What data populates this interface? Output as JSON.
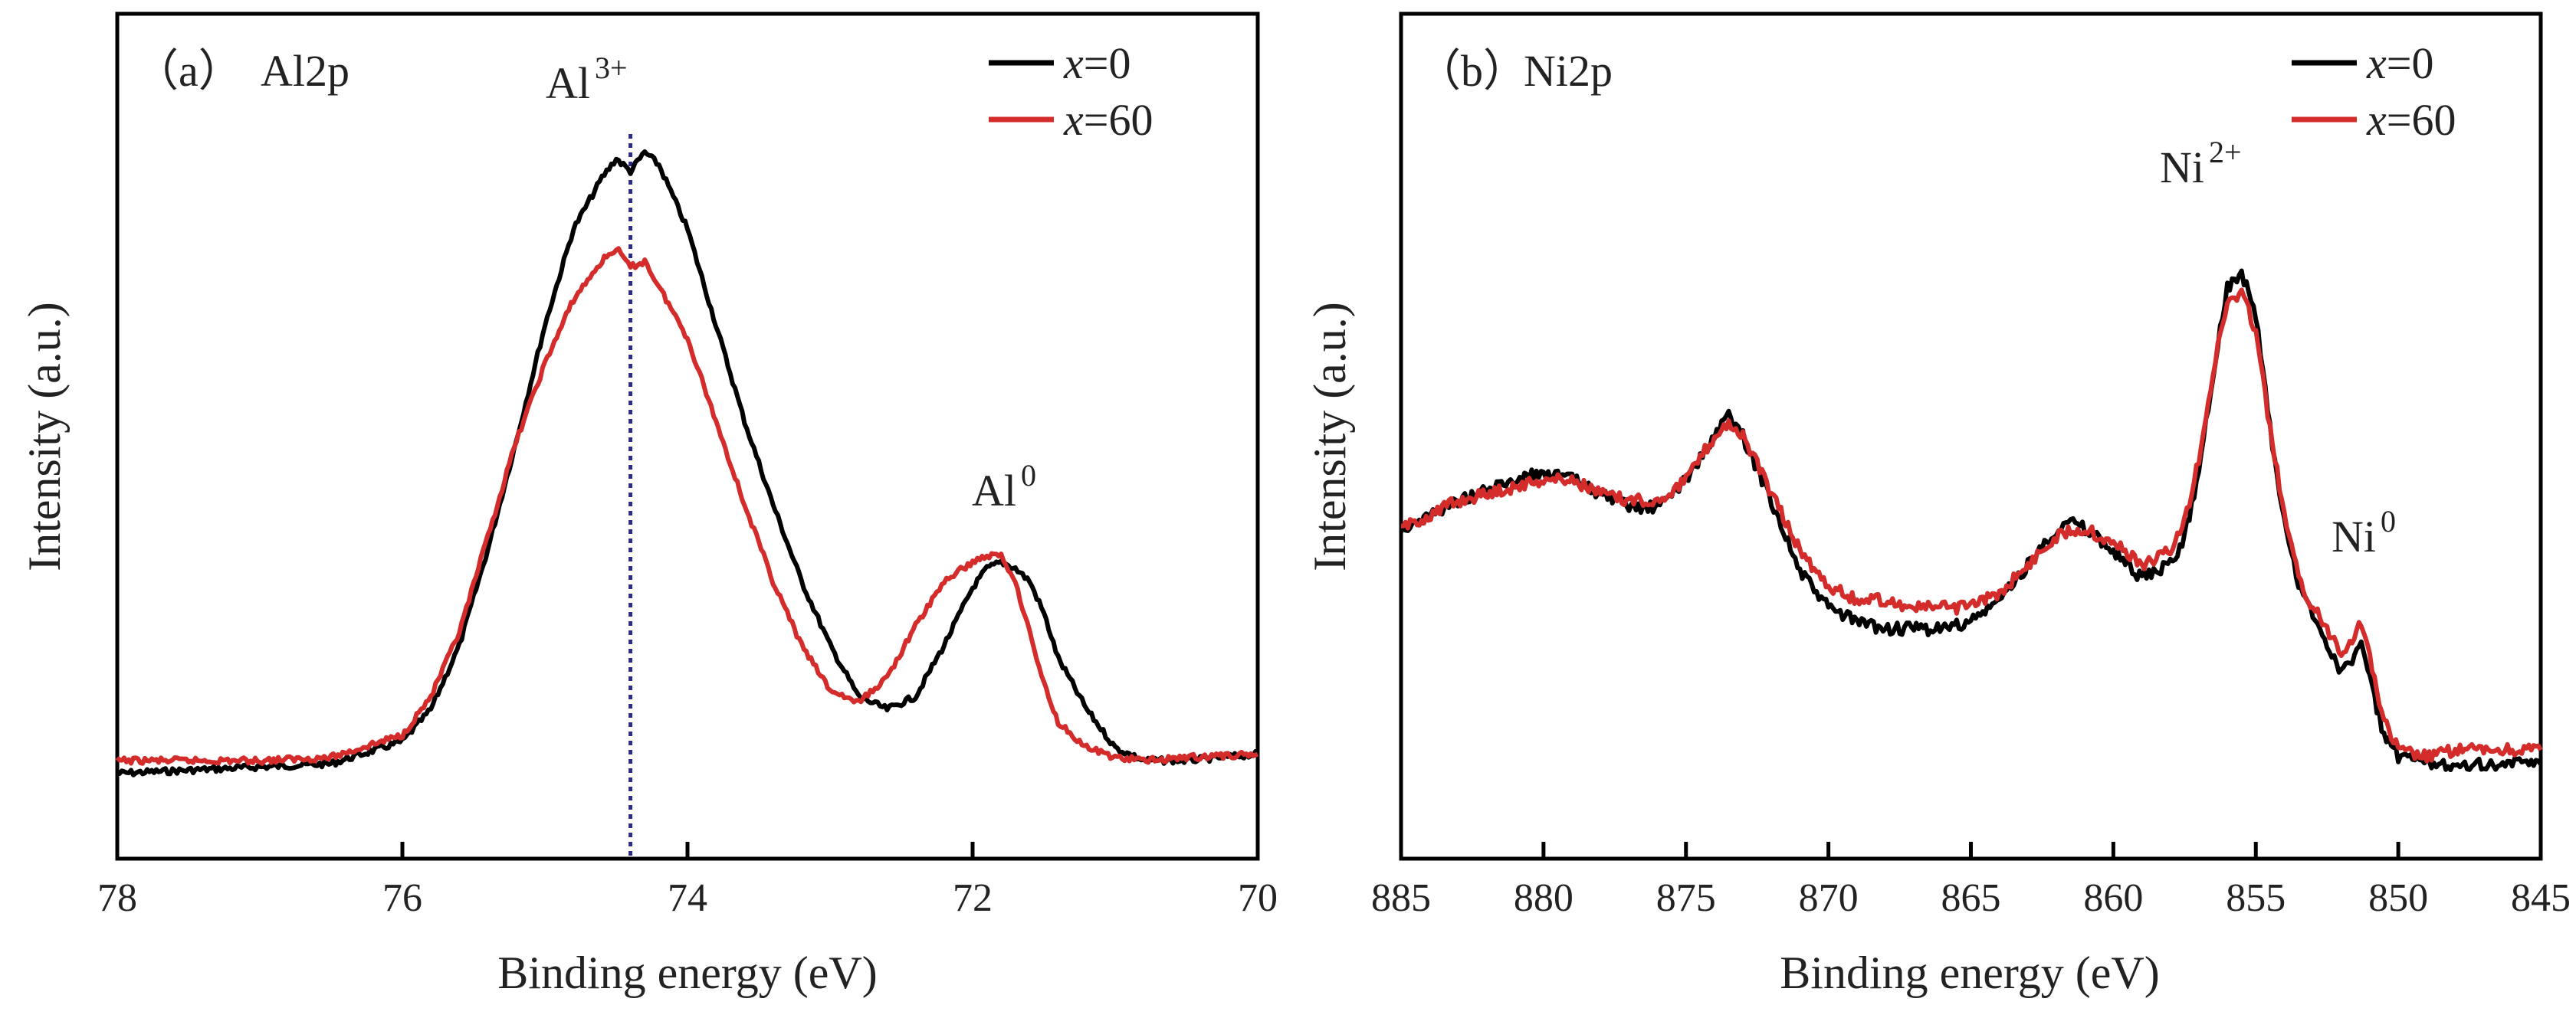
{
  "chart_data": [
    {
      "type": "line",
      "panel_label": "（a）",
      "title": "Al2p",
      "xlabel": "Binding energy (eV)",
      "ylabel": "Intensity (a.u.)",
      "xlim": [
        78,
        70
      ],
      "ylim": [
        -0.12,
        1.1
      ],
      "x_reversed": true,
      "xticks": [
        78,
        76,
        74,
        72,
        70
      ],
      "xtick_labels": [
        "78",
        "76",
        "74",
        "72",
        "70"
      ],
      "yticks": "none",
      "grid": false,
      "legend": {
        "position": "top-right",
        "prefix": "x",
        "entries": [
          "=0",
          "=60"
        ]
      },
      "annotations": [
        {
          "base": "Al",
          "sup": "3+",
          "x": 74.4,
          "y": 1.03
        },
        {
          "base": "Al",
          "sup": "0",
          "x": 71.7,
          "y": 0.44
        }
      ],
      "reference_line": {
        "x": 74.4,
        "style": "dotted",
        "color": "#2b2b8c"
      },
      "series": [
        {
          "name": "x=0",
          "color": "#000000",
          "x": [
            78.0,
            77.5,
            77.0,
            76.5,
            76.0,
            75.8,
            75.6,
            75.4,
            75.2,
            75.0,
            74.8,
            74.6,
            74.5,
            74.4,
            74.3,
            74.2,
            74.1,
            74.0,
            73.8,
            73.6,
            73.4,
            73.2,
            73.0,
            72.8,
            72.6,
            72.4,
            72.2,
            72.0,
            71.9,
            71.8,
            71.7,
            71.6,
            71.5,
            71.4,
            71.2,
            71.0,
            70.8,
            70.5,
            70.0
          ],
          "y": [
            0.0,
            0.005,
            0.01,
            0.015,
            0.05,
            0.1,
            0.2,
            0.35,
            0.52,
            0.7,
            0.85,
            0.93,
            0.96,
            0.94,
            0.97,
            0.95,
            0.9,
            0.85,
            0.7,
            0.55,
            0.42,
            0.3,
            0.2,
            0.12,
            0.1,
            0.12,
            0.2,
            0.29,
            0.32,
            0.33,
            0.32,
            0.3,
            0.25,
            0.18,
            0.1,
            0.04,
            0.02,
            0.02,
            0.03
          ]
        },
        {
          "name": "x=60",
          "color": "#d42b2b",
          "x": [
            78.0,
            77.5,
            77.0,
            76.5,
            76.0,
            75.8,
            75.6,
            75.4,
            75.2,
            75.0,
            74.8,
            74.6,
            74.5,
            74.4,
            74.3,
            74.2,
            74.0,
            73.8,
            73.6,
            73.4,
            73.2,
            73.0,
            72.8,
            72.6,
            72.4,
            72.2,
            72.0,
            71.9,
            71.8,
            71.7,
            71.6,
            71.5,
            71.4,
            71.2,
            71.0,
            70.8,
            70.5,
            70.0
          ],
          "y": [
            0.02,
            0.02,
            0.02,
            0.025,
            0.06,
            0.12,
            0.22,
            0.37,
            0.52,
            0.64,
            0.74,
            0.8,
            0.82,
            0.79,
            0.8,
            0.76,
            0.68,
            0.55,
            0.42,
            0.3,
            0.2,
            0.13,
            0.11,
            0.15,
            0.23,
            0.3,
            0.33,
            0.34,
            0.34,
            0.3,
            0.22,
            0.14,
            0.08,
            0.04,
            0.025,
            0.02,
            0.025,
            0.03
          ]
        }
      ]
    },
    {
      "type": "line",
      "panel_label": "（b）",
      "title": "Ni2p",
      "xlabel": "Binding energy (eV)",
      "ylabel": "Intensity (a.u.)",
      "xlim": [
        885,
        845
      ],
      "ylim": [
        0.0,
        1.0
      ],
      "x_reversed": true,
      "xticks": [
        885,
        880,
        875,
        870,
        865,
        860,
        855,
        850,
        845
      ],
      "xtick_labels": [
        "885",
        "880",
        "875",
        "870",
        "865",
        "860",
        "855",
        "850",
        "845"
      ],
      "yticks": "none",
      "grid": false,
      "legend": {
        "position": "top-right",
        "prefix": "x",
        "entries": [
          "=0",
          "=60"
        ]
      },
      "annotations": [
        {
          "base": "Ni",
          "sup": "2+",
          "x": 855.4,
          "y": 0.83
        },
        {
          "base": "Ni",
          "sup": "0",
          "x": 850.7,
          "y": 0.45
        }
      ],
      "series": [
        {
          "name": "x=0",
          "color": "#000000",
          "x": [
            885,
            883,
            881,
            880,
            879,
            878,
            877,
            876,
            875,
            874,
            873.5,
            873,
            872,
            871,
            870,
            869,
            868,
            867,
            866,
            865,
            864,
            863,
            862,
            861.5,
            861,
            860,
            859,
            858,
            857.5,
            857,
            856.5,
            856,
            855.5,
            855,
            854.5,
            854,
            853.5,
            853,
            852.5,
            852,
            851.7,
            851.3,
            851,
            850.5,
            850,
            849,
            848,
            847,
            846,
            845
          ],
          "y": [
            0.44,
            0.48,
            0.51,
            0.52,
            0.51,
            0.49,
            0.47,
            0.47,
            0.51,
            0.57,
            0.6,
            0.57,
            0.48,
            0.38,
            0.33,
            0.31,
            0.3,
            0.3,
            0.3,
            0.31,
            0.34,
            0.39,
            0.44,
            0.45,
            0.44,
            0.41,
            0.37,
            0.39,
            0.43,
            0.52,
            0.66,
            0.78,
            0.8,
            0.74,
            0.58,
            0.45,
            0.36,
            0.32,
            0.28,
            0.24,
            0.25,
            0.28,
            0.23,
            0.15,
            0.12,
            0.11,
            0.11,
            0.11,
            0.11,
            0.11
          ]
        },
        {
          "name": "x=60",
          "color": "#d42b2b",
          "x": [
            885,
            883,
            881,
            880,
            879,
            878,
            877,
            876,
            875,
            874,
            873.5,
            873,
            872,
            871,
            870,
            869,
            868,
            867,
            866,
            865,
            864,
            863,
            862,
            861.5,
            861,
            860,
            859,
            858,
            857.5,
            857,
            856.5,
            856,
            855.5,
            855,
            854.5,
            854,
            853.5,
            853,
            852.5,
            852,
            851.7,
            851.3,
            851,
            850.5,
            850,
            849,
            848,
            847,
            846,
            845
          ],
          "y": [
            0.44,
            0.48,
            0.5,
            0.51,
            0.51,
            0.49,
            0.48,
            0.48,
            0.51,
            0.57,
            0.59,
            0.57,
            0.49,
            0.41,
            0.36,
            0.34,
            0.34,
            0.33,
            0.33,
            0.33,
            0.35,
            0.39,
            0.43,
            0.44,
            0.44,
            0.42,
            0.39,
            0.41,
            0.45,
            0.54,
            0.66,
            0.76,
            0.77,
            0.72,
            0.58,
            0.46,
            0.37,
            0.33,
            0.3,
            0.27,
            0.28,
            0.31,
            0.26,
            0.17,
            0.13,
            0.12,
            0.13,
            0.13,
            0.13,
            0.13
          ]
        }
      ]
    }
  ]
}
